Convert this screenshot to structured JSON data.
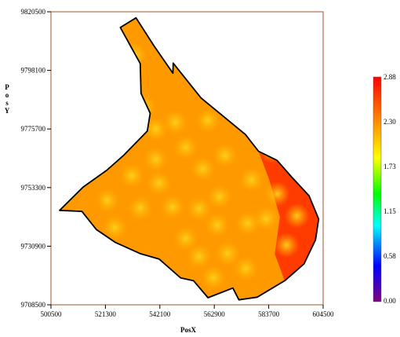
{
  "map": {
    "xlabel": "PosX",
    "ylabel_chars": [
      "P",
      "o",
      "s",
      "Y"
    ],
    "x_ticks": [
      "500500",
      "521300",
      "542100",
      "562900",
      "583700",
      "604500"
    ],
    "y_ticks": [
      "9820500",
      "9798100",
      "9775700",
      "9753300",
      "9730900",
      "9708500"
    ],
    "x_range": [
      500500,
      604500
    ],
    "y_range": [
      9708500,
      9820500
    ],
    "frame_color": "#a0522d"
  },
  "colorbar": {
    "labels": [
      "2.88",
      "2.30",
      "1.73",
      "1.15",
      "0.58",
      "0.00"
    ],
    "range": [
      0.0,
      2.88
    ],
    "colors": [
      "#ff0000",
      "#ff8000",
      "#ffff00",
      "#00ff00",
      "#00ffff",
      "#0000ff",
      "#800080"
    ]
  },
  "region": {
    "fill_dominant": "#ff9900",
    "high_value_color": "#ff2000",
    "outline_color": "#000000",
    "boundary_xy": [
      [
        527000,
        9814500
      ],
      [
        533000,
        9818200
      ],
      [
        539800,
        9807600
      ],
      [
        547100,
        9797000
      ],
      [
        547200,
        9800900
      ],
      [
        557800,
        9787600
      ],
      [
        574800,
        9773600
      ],
      [
        579800,
        9767200
      ],
      [
        586900,
        9763700
      ],
      [
        592500,
        9757300
      ],
      [
        599100,
        9750200
      ],
      [
        602800,
        9741300
      ],
      [
        601600,
        9733300
      ],
      [
        597200,
        9724100
      ],
      [
        589800,
        9717700
      ],
      [
        579300,
        9711400
      ],
      [
        572300,
        9710400
      ],
      [
        570000,
        9714900
      ],
      [
        560500,
        9711200
      ],
      [
        555000,
        9717700
      ],
      [
        550000,
        9718800
      ],
      [
        541800,
        9726000
      ],
      [
        534500,
        9728100
      ],
      [
        525000,
        9732400
      ],
      [
        517800,
        9737300
      ],
      [
        512300,
        9744200
      ],
      [
        503800,
        9744600
      ],
      [
        512800,
        9753500
      ],
      [
        521900,
        9760000
      ],
      [
        528100,
        9765500
      ],
      [
        537300,
        9774900
      ],
      [
        538400,
        9781700
      ],
      [
        534900,
        9789300
      ],
      [
        534600,
        9800700
      ],
      [
        527000,
        9814500
      ]
    ],
    "hot_spots": [
      [
        532500,
        9804000
      ],
      [
        528000,
        9800000
      ],
      [
        536000,
        9784300
      ],
      [
        540500,
        9775700
      ],
      [
        540500,
        9764100
      ],
      [
        548000,
        9778300
      ],
      [
        560500,
        9779000
      ],
      [
        552000,
        9768700
      ],
      [
        558500,
        9760500
      ],
      [
        567000,
        9765600
      ],
      [
        522000,
        9748400
      ],
      [
        524900,
        9738000
      ],
      [
        531400,
        9757900
      ],
      [
        534600,
        9745500
      ],
      [
        547000,
        9745900
      ],
      [
        541800,
        9755000
      ],
      [
        557100,
        9745200
      ],
      [
        564000,
        9739000
      ],
      [
        564900,
        9749800
      ],
      [
        552000,
        9733800
      ],
      [
        557100,
        9727000
      ],
      [
        568000,
        9728100
      ],
      [
        562600,
        9718800
      ],
      [
        575700,
        9739600
      ],
      [
        582700,
        9741500
      ],
      [
        577100,
        9756300
      ],
      [
        587000,
        9750900
      ],
      [
        584800,
        9767400
      ],
      [
        594500,
        9742500
      ],
      [
        590500,
        9731300
      ],
      [
        575000,
        9722400
      ]
    ],
    "red_zone": [
      [
        579800,
        9767200
      ],
      [
        586900,
        9763700
      ],
      [
        592500,
        9757300
      ],
      [
        599100,
        9750200
      ],
      [
        602800,
        9741300
      ],
      [
        601600,
        9733300
      ],
      [
        597200,
        9724100
      ],
      [
        589800,
        9717700
      ],
      [
        586000,
        9728000
      ],
      [
        588000,
        9742000
      ],
      [
        584000,
        9756000
      ]
    ]
  }
}
